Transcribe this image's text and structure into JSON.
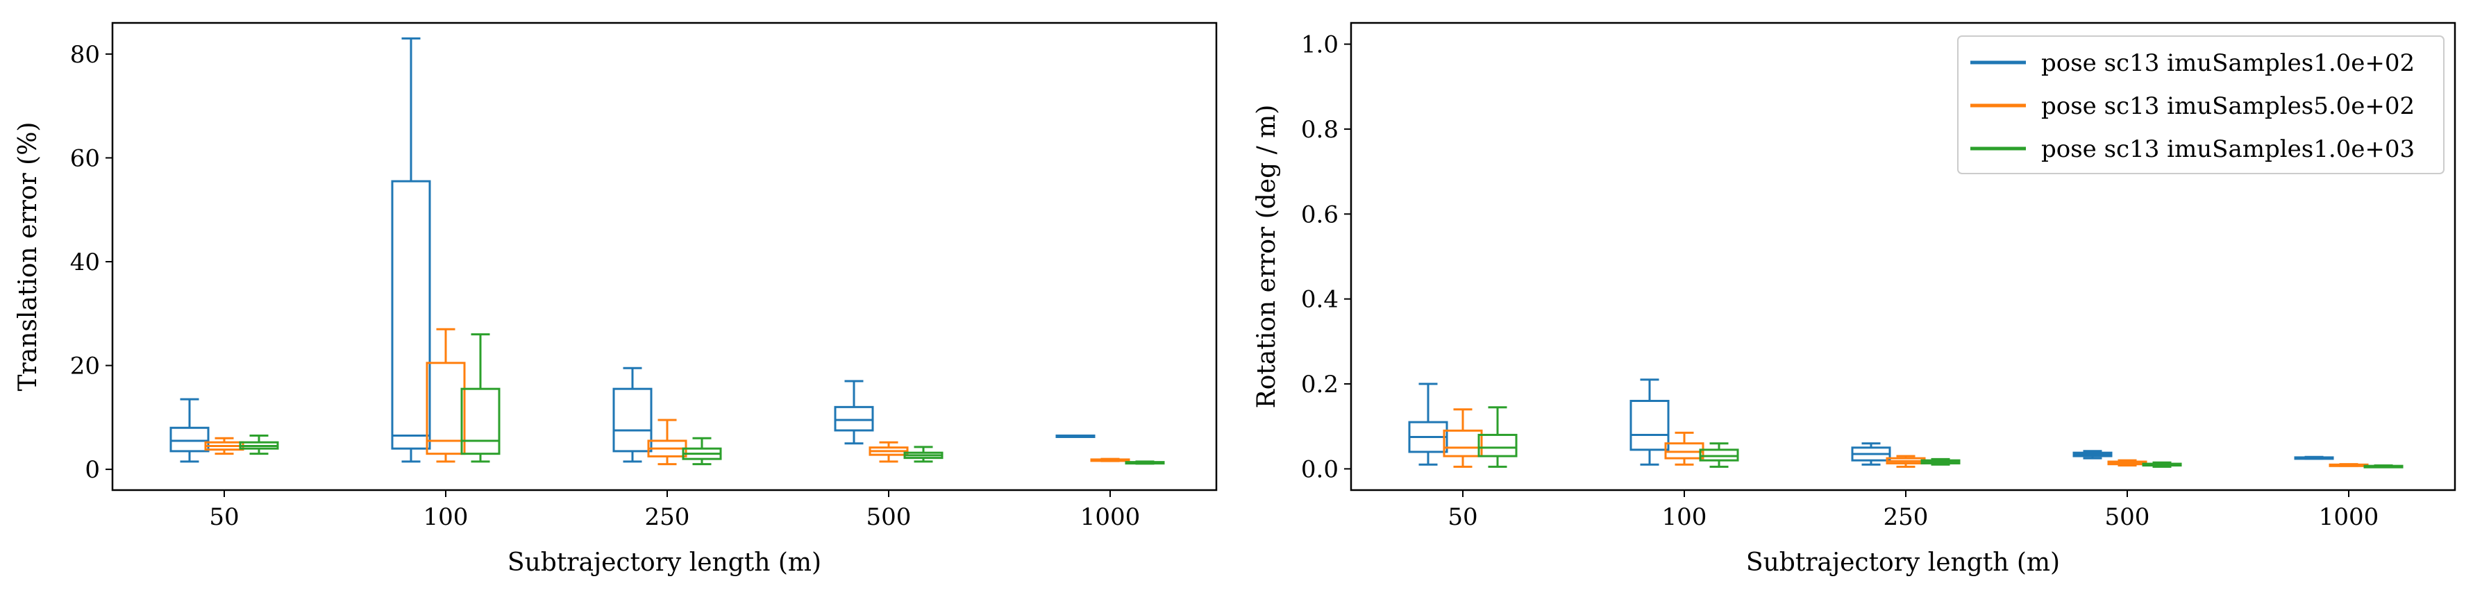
{
  "chart_data": [
    {
      "type": "box",
      "xlabel": "Subtrajectory length (m)",
      "ylabel": "Translation error (%)",
      "categories": [
        "50",
        "100",
        "250",
        "500",
        "1000"
      ],
      "ylim": [
        -4,
        86
      ],
      "yticks": [
        0,
        20,
        40,
        60,
        80
      ],
      "grid": false,
      "series": [
        {
          "name": "pose sc13 imuSamples1.0e+02",
          "color": "#1f77b4",
          "boxes": [
            {
              "whislo": 1.5,
              "q1": 3.5,
              "med": 5.5,
              "q3": 8.0,
              "whishi": 13.5
            },
            {
              "whislo": 1.5,
              "q1": 4.0,
              "med": 6.5,
              "q3": 55.5,
              "whishi": 83.0
            },
            {
              "whislo": 1.5,
              "q1": 3.5,
              "med": 7.5,
              "q3": 15.5,
              "whishi": 19.5
            },
            {
              "whislo": 5.0,
              "q1": 7.5,
              "med": 9.5,
              "q3": 12.0,
              "whishi": 17.0
            },
            {
              "whislo": 6.3,
              "q1": 6.3,
              "med": 6.4,
              "q3": 6.5,
              "whishi": 6.5
            }
          ]
        },
        {
          "name": "pose sc13 imuSamples5.0e+02",
          "color": "#ff7f0e",
          "boxes": [
            {
              "whislo": 3.0,
              "q1": 3.8,
              "med": 4.5,
              "q3": 5.2,
              "whishi": 6.0
            },
            {
              "whislo": 1.5,
              "q1": 3.0,
              "med": 5.5,
              "q3": 20.5,
              "whishi": 27.0
            },
            {
              "whislo": 1.0,
              "q1": 2.5,
              "med": 4.0,
              "q3": 5.5,
              "whishi": 9.5
            },
            {
              "whislo": 1.5,
              "q1": 2.8,
              "med": 3.5,
              "q3": 4.2,
              "whishi": 5.2
            },
            {
              "whislo": 1.6,
              "q1": 1.7,
              "med": 1.8,
              "q3": 1.9,
              "whishi": 2.0
            }
          ]
        },
        {
          "name": "pose sc13 imuSamples1.0e+03",
          "color": "#2ca02c",
          "boxes": [
            {
              "whislo": 3.0,
              "q1": 4.0,
              "med": 4.5,
              "q3": 5.2,
              "whishi": 6.5
            },
            {
              "whislo": 1.5,
              "q1": 3.0,
              "med": 5.5,
              "q3": 15.5,
              "whishi": 26.0
            },
            {
              "whislo": 1.0,
              "q1": 2.0,
              "med": 3.0,
              "q3": 4.0,
              "whishi": 6.0
            },
            {
              "whislo": 1.5,
              "q1": 2.2,
              "med": 2.7,
              "q3": 3.2,
              "whishi": 4.3
            },
            {
              "whislo": 1.1,
              "q1": 1.2,
              "med": 1.3,
              "q3": 1.4,
              "whishi": 1.5
            }
          ]
        }
      ]
    },
    {
      "type": "box",
      "xlabel": "Subtrajectory length (m)",
      "ylabel": "Rotation error (deg / m)",
      "categories": [
        "50",
        "100",
        "250",
        "500",
        "1000"
      ],
      "ylim": [
        -0.05,
        1.05
      ],
      "yticks": [
        0.0,
        0.2,
        0.4,
        0.6,
        0.8,
        1.0
      ],
      "grid": false,
      "legend": "top-right",
      "series": [
        {
          "name": "pose sc13 imuSamples1.0e+02",
          "color": "#1f77b4",
          "boxes": [
            {
              "whislo": 0.01,
              "q1": 0.04,
              "med": 0.075,
              "q3": 0.11,
              "whishi": 0.2
            },
            {
              "whislo": 0.01,
              "q1": 0.045,
              "med": 0.08,
              "q3": 0.16,
              "whishi": 0.21
            },
            {
              "whislo": 0.01,
              "q1": 0.02,
              "med": 0.035,
              "q3": 0.05,
              "whishi": 0.06
            },
            {
              "whislo": 0.025,
              "q1": 0.03,
              "med": 0.034,
              "q3": 0.038,
              "whishi": 0.042
            },
            {
              "whislo": 0.024,
              "q1": 0.025,
              "med": 0.026,
              "q3": 0.027,
              "whishi": 0.028
            }
          ]
        },
        {
          "name": "pose sc13 imuSamples5.0e+02",
          "color": "#ff7f0e",
          "boxes": [
            {
              "whislo": 0.005,
              "q1": 0.03,
              "med": 0.05,
              "q3": 0.09,
              "whishi": 0.14
            },
            {
              "whislo": 0.01,
              "q1": 0.025,
              "med": 0.04,
              "q3": 0.06,
              "whishi": 0.085
            },
            {
              "whislo": 0.005,
              "q1": 0.013,
              "med": 0.018,
              "q3": 0.025,
              "whishi": 0.03
            },
            {
              "whislo": 0.008,
              "q1": 0.011,
              "med": 0.014,
              "q3": 0.017,
              "whishi": 0.02
            },
            {
              "whislo": 0.007,
              "q1": 0.008,
              "med": 0.009,
              "q3": 0.01,
              "whishi": 0.011
            }
          ]
        },
        {
          "name": "pose sc13 imuSamples1.0e+03",
          "color": "#2ca02c",
          "boxes": [
            {
              "whislo": 0.005,
              "q1": 0.03,
              "med": 0.05,
              "q3": 0.08,
              "whishi": 0.145
            },
            {
              "whislo": 0.005,
              "q1": 0.02,
              "med": 0.03,
              "q3": 0.045,
              "whishi": 0.06
            },
            {
              "whislo": 0.01,
              "q1": 0.013,
              "med": 0.016,
              "q3": 0.02,
              "whishi": 0.023
            },
            {
              "whislo": 0.005,
              "q1": 0.008,
              "med": 0.01,
              "q3": 0.012,
              "whishi": 0.015
            },
            {
              "whislo": 0.004,
              "q1": 0.005,
              "med": 0.006,
              "q3": 0.007,
              "whishi": 0.008
            }
          ]
        }
      ]
    }
  ]
}
